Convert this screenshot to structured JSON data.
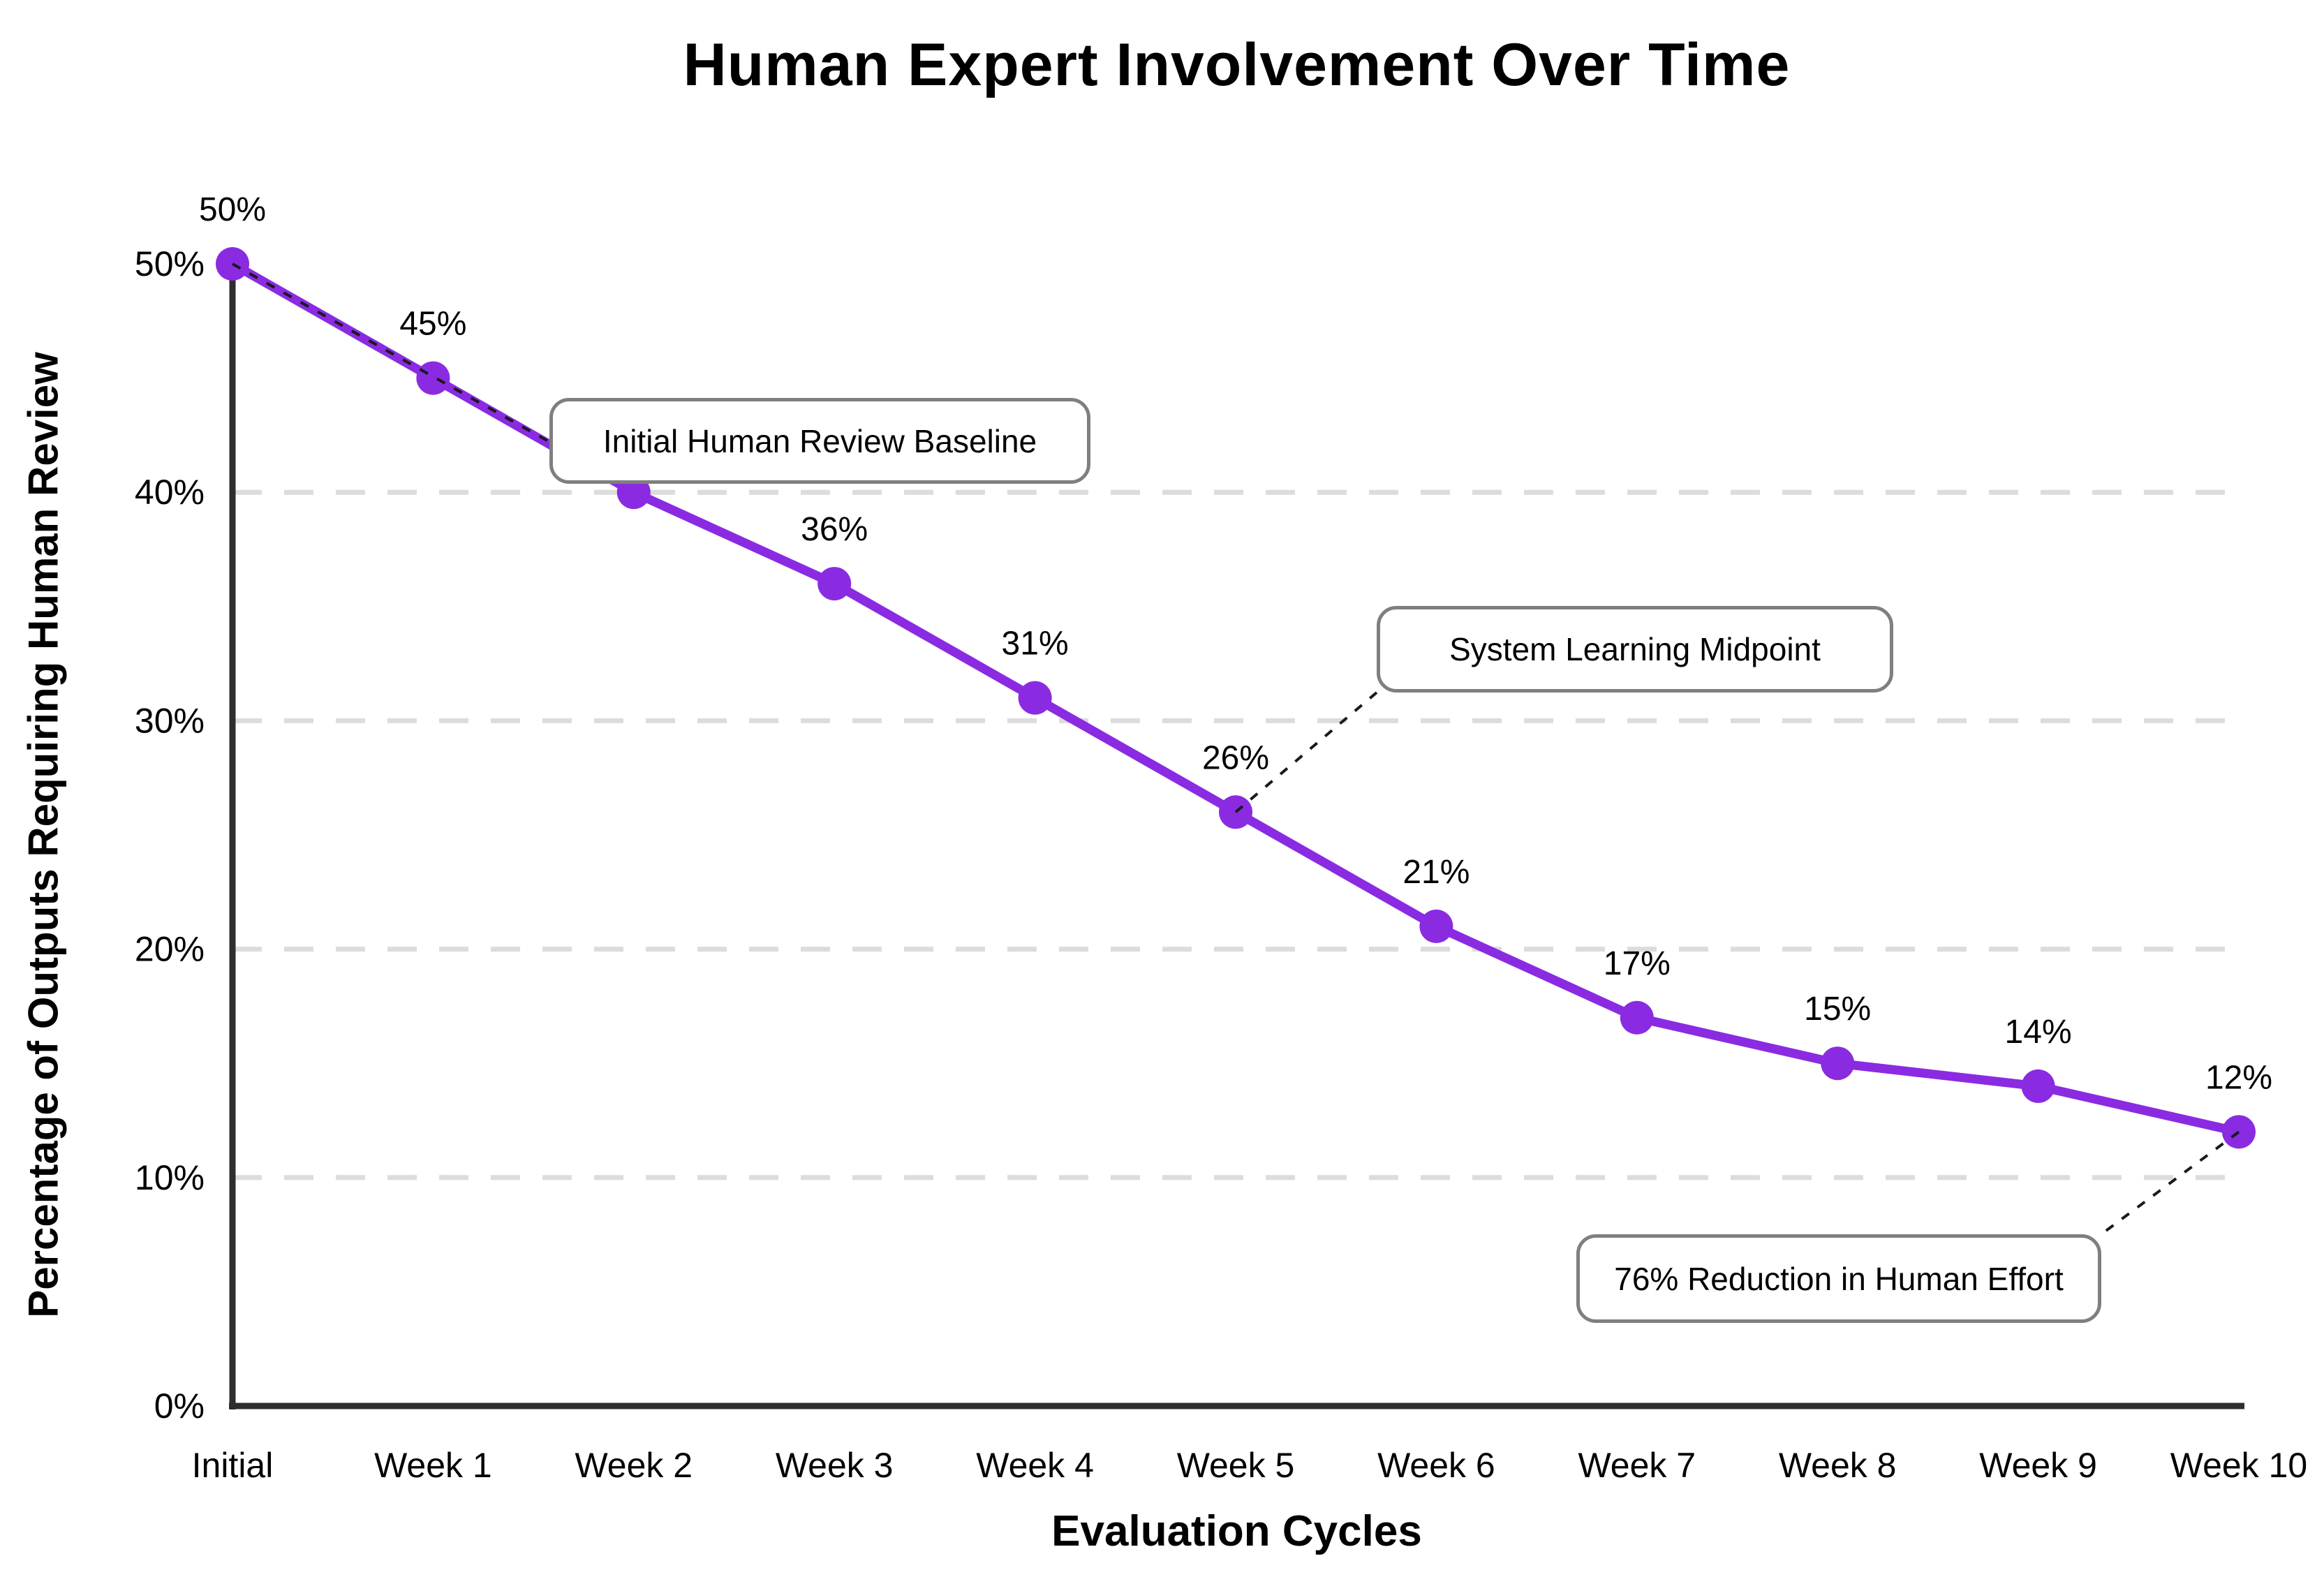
{
  "chart_data": {
    "type": "line",
    "title": "Human Expert Involvement Over Time",
    "xlabel": "Evaluation Cycles",
    "ylabel": "Percentage of Outputs Requiring Human Review",
    "categories": [
      "Initial",
      "Week 1",
      "Week 2",
      "Week 3",
      "Week 4",
      "Week 5",
      "Week 6",
      "Week 7",
      "Week 8",
      "Week 9",
      "Week 10"
    ],
    "series": [
      {
        "name": "Percentage of Outputs Requiring Human Review",
        "values": [
          50,
          45,
          40,
          36,
          31,
          26,
          21,
          17,
          15,
          14,
          12
        ]
      }
    ],
    "point_labels": [
      "50%",
      "45%",
      "40%",
      "36%",
      "31%",
      "26%",
      "21%",
      "17%",
      "15%",
      "14%",
      "12%"
    ],
    "yticks": [
      "0%",
      "10%",
      "20%",
      "30%",
      "40%",
      "50%"
    ],
    "ylim": [
      0,
      50
    ],
    "grid": "horizontal-dashed",
    "legend": "none",
    "colors": {
      "line": "#8A2BE2",
      "marker": "#8A2BE2",
      "axis": "#2e2e2e",
      "gridline": "#dcdcdc",
      "connector": "#1a1a1a",
      "annotation_border": "#7f7f7f",
      "annotation_bg": "#ffffff",
      "text": "#000000"
    },
    "annotations": [
      {
        "text": "Initial Human Review Baseline",
        "points_to": "Initial"
      },
      {
        "text": "System Learning Midpoint",
        "points_to": "Week 5"
      },
      {
        "text": "76% Reduction in Human Effort",
        "points_to": "Week 10"
      }
    ]
  }
}
